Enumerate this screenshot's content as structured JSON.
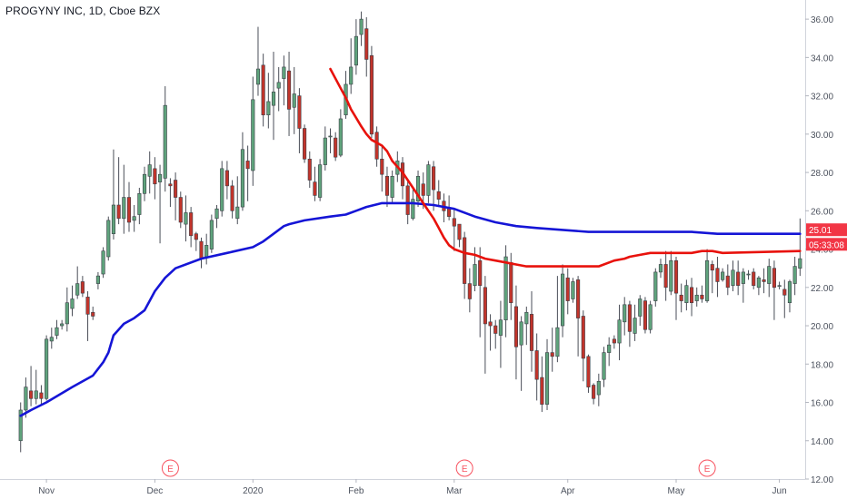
{
  "symbol_title": "PROGYNY INC, 1D, Cboe BZX",
  "chart_data": {
    "type": "candlestick",
    "title": "PROGYNY INC, 1D, Cboe BZX",
    "ylim": [
      12,
      37
    ],
    "y_ticks": [
      12,
      14,
      16,
      18,
      20,
      22,
      24,
      26,
      28,
      30,
      32,
      34,
      36
    ],
    "x_range": [
      -4,
      152
    ],
    "x_ticks": [
      {
        "label": "Nov",
        "x": 5
      },
      {
        "label": "Dec",
        "x": 26
      },
      {
        "label": "2020",
        "x": 45
      },
      {
        "label": "Feb",
        "x": 65
      },
      {
        "label": "Mar",
        "x": 84
      },
      {
        "label": "Apr",
        "x": 106
      },
      {
        "label": "May",
        "x": 127
      },
      {
        "label": "Jun",
        "x": 147
      }
    ],
    "earnings_markers": [
      {
        "label": "E",
        "x": 29
      },
      {
        "label": "E",
        "x": 86
      },
      {
        "label": "E",
        "x": 133
      }
    ],
    "price_labels": [
      {
        "text": "25.01",
        "value": 25.01,
        "color": "#f23645"
      },
      {
        "text": "05:33:08",
        "value": 24.25,
        "color": "#f23645"
      }
    ],
    "candles": [
      [
        0,
        14.0,
        15.6,
        13.4,
        16.0
      ],
      [
        1,
        15.6,
        16.8,
        15.2,
        17.3
      ],
      [
        2,
        16.6,
        16.2,
        15.8,
        17.9
      ],
      [
        3,
        16.2,
        16.6,
        15.9,
        17.7
      ],
      [
        4,
        16.5,
        16.2,
        15.9,
        16.9
      ],
      [
        5,
        16.2,
        19.3,
        16.1,
        19.5
      ],
      [
        6,
        19.2,
        19.4,
        18.8,
        19.9
      ],
      [
        7,
        19.5,
        19.9,
        19.3,
        20.3
      ],
      [
        8,
        20.0,
        20.1,
        19.8,
        20.3
      ],
      [
        9,
        20.1,
        21.2,
        19.7,
        22.0
      ],
      [
        10,
        20.9,
        21.4,
        20.5,
        22.1
      ],
      [
        11,
        21.6,
        22.2,
        21.4,
        23.1
      ],
      [
        12,
        22.3,
        21.7,
        21.5,
        22.6
      ],
      [
        13,
        21.5,
        20.6,
        19.2,
        21.8
      ],
      [
        14,
        20.7,
        20.5,
        20.3,
        21.0
      ],
      [
        15,
        22.2,
        22.6,
        21.9,
        22.8
      ],
      [
        16,
        22.7,
        23.9,
        22.5,
        24.1
      ],
      [
        17,
        23.6,
        25.5,
        23.4,
        25.7
      ],
      [
        18,
        24.8,
        26.3,
        24.5,
        29.2
      ],
      [
        19,
        26.3,
        25.6,
        25.3,
        28.8
      ],
      [
        20,
        25.6,
        26.7,
        24.8,
        28.4
      ],
      [
        21,
        26.7,
        25.4,
        24.9,
        27.5
      ],
      [
        22,
        25.5,
        25.7,
        24.9,
        26.3
      ],
      [
        23,
        25.8,
        26.9,
        25.3,
        27.2
      ],
      [
        24,
        26.9,
        27.9,
        26.5,
        28.3
      ],
      [
        25,
        27.8,
        28.4,
        26.9,
        29.1
      ],
      [
        26,
        28.2,
        27.4,
        26.6,
        28.8
      ],
      [
        27,
        27.5,
        27.9,
        24.3,
        28.4
      ],
      [
        28,
        27.7,
        31.5,
        27.0,
        32.5
      ],
      [
        29,
        27.4,
        27.3,
        26.2,
        27.7
      ],
      [
        30,
        27.6,
        26.7,
        25.5,
        28.0
      ],
      [
        31,
        26.7,
        25.4,
        25.1,
        27.0
      ],
      [
        32,
        25.3,
        25.9,
        24.4,
        26.8
      ],
      [
        33,
        25.9,
        24.7,
        24.1,
        26.2
      ],
      [
        34,
        24.8,
        24.5,
        23.9,
        24.9
      ],
      [
        35,
        24.4,
        23.5,
        23.0,
        24.6
      ],
      [
        36,
        23.6,
        24.2,
        23.2,
        24.8
      ],
      [
        37,
        24.0,
        25.5,
        23.8,
        25.8
      ],
      [
        38,
        25.6,
        26.1,
        25.1,
        26.3
      ],
      [
        39,
        26.0,
        28.2,
        25.7,
        28.6
      ],
      [
        40,
        28.1,
        27.3,
        26.6,
        28.6
      ],
      [
        41,
        27.3,
        26.0,
        25.6,
        27.6
      ],
      [
        42,
        25.6,
        26.2,
        25.3,
        27.8
      ],
      [
        43,
        26.2,
        29.2,
        26.0,
        30.1
      ],
      [
        44,
        28.6,
        28.2,
        26.5,
        29.4
      ],
      [
        45,
        28.1,
        31.8,
        27.3,
        33.0
      ],
      [
        46,
        32.6,
        33.4,
        32.0,
        35.6
      ],
      [
        47,
        33.6,
        31.0,
        30.4,
        34.2
      ],
      [
        48,
        31.0,
        31.7,
        30.3,
        33.2
      ],
      [
        49,
        31.5,
        32.2,
        29.7,
        34.3
      ],
      [
        50,
        32.4,
        32.7,
        31.2,
        33.5
      ],
      [
        51,
        32.9,
        33.5,
        31.5,
        34.1
      ],
      [
        52,
        33.3,
        31.3,
        29.9,
        34.3
      ],
      [
        53,
        31.4,
        32.1,
        30.0,
        33.5
      ],
      [
        54,
        32.0,
        30.3,
        29.0,
        32.4
      ],
      [
        55,
        30.3,
        28.7,
        28.5,
        30.5
      ],
      [
        56,
        28.7,
        27.6,
        27.2,
        29.1
      ],
      [
        57,
        27.5,
        26.8,
        26.5,
        28.3
      ],
      [
        58,
        26.7,
        28.4,
        26.5,
        28.7
      ],
      [
        59,
        28.4,
        29.8,
        28.1,
        30.4
      ],
      [
        60,
        29.9,
        29.9,
        29.0,
        30.3
      ],
      [
        61,
        29.8,
        28.8,
        28.6,
        30.1
      ],
      [
        62,
        28.9,
        30.8,
        28.8,
        31.3
      ],
      [
        63,
        31.0,
        32.6,
        30.8,
        33.3
      ],
      [
        64,
        32.6,
        33.5,
        32.1,
        35.0
      ],
      [
        65,
        33.6,
        35.1,
        33.1,
        36.0
      ],
      [
        66,
        35.2,
        36.0,
        34.6,
        36.4
      ],
      [
        67,
        35.5,
        33.9,
        33.0,
        36.1
      ],
      [
        68,
        34.1,
        30.0,
        29.8,
        34.6
      ],
      [
        69,
        30.1,
        28.7,
        28.3,
        30.4
      ],
      [
        70,
        28.7,
        27.9,
        27.0,
        29.4
      ],
      [
        71,
        27.8,
        26.8,
        26.2,
        28.3
      ],
      [
        72,
        26.7,
        27.8,
        26.4,
        28.1
      ],
      [
        73,
        27.9,
        28.6,
        27.5,
        29.1
      ],
      [
        74,
        28.5,
        27.3,
        26.6,
        28.8
      ],
      [
        75,
        27.3,
        25.8,
        25.3,
        27.6
      ],
      [
        76,
        25.6,
        26.6,
        25.5,
        27.1
      ],
      [
        77,
        26.5,
        27.8,
        26.2,
        28.1
      ],
      [
        78,
        27.4,
        26.8,
        26.1,
        28.0
      ],
      [
        79,
        26.8,
        28.4,
        26.4,
        28.6
      ],
      [
        80,
        28.3,
        27.1,
        26.0,
        28.6
      ],
      [
        81,
        27.0,
        26.6,
        26.2,
        27.6
      ],
      [
        82,
        26.5,
        26.0,
        25.4,
        26.9
      ],
      [
        83,
        26.1,
        25.7,
        25.5,
        26.8
      ],
      [
        84,
        25.6,
        25.2,
        23.9,
        26.1
      ],
      [
        85,
        25.3,
        24.5,
        24.1,
        25.3
      ],
      [
        86,
        24.6,
        22.2,
        21.4,
        24.9
      ],
      [
        87,
        22.2,
        21.4,
        20.7,
        23.0
      ],
      [
        88,
        22.1,
        23.2,
        21.8,
        24.1
      ],
      [
        89,
        23.4,
        22.1,
        19.4,
        24.1
      ],
      [
        90,
        22.0,
        20.1,
        17.5,
        22.6
      ],
      [
        91,
        20.2,
        20.0,
        18.7,
        20.6
      ],
      [
        92,
        20.0,
        19.6,
        18.8,
        20.3
      ],
      [
        93,
        19.5,
        20.3,
        17.8,
        21.3
      ],
      [
        94,
        20.3,
        23.6,
        19.4,
        24.2
      ],
      [
        95,
        23.3,
        21.2,
        20.3,
        23.8
      ],
      [
        96,
        21.0,
        18.9,
        17.2,
        22.1
      ],
      [
        97,
        19.0,
        20.2,
        16.6,
        20.5
      ],
      [
        98,
        20.1,
        20.7,
        19.0,
        21.0
      ],
      [
        99,
        20.6,
        18.7,
        17.6,
        21.8
      ],
      [
        100,
        18.7,
        17.2,
        16.1,
        19.6
      ],
      [
        101,
        17.3,
        15.9,
        15.5,
        18.4
      ],
      [
        102,
        15.9,
        18.6,
        15.6,
        19.3
      ],
      [
        103,
        18.6,
        18.4,
        17.6,
        19.9
      ],
      [
        104,
        18.4,
        19.9,
        18.1,
        22.6
      ],
      [
        105,
        20.0,
        22.7,
        19.4,
        23.2
      ],
      [
        106,
        22.5,
        21.3,
        20.6,
        23.0
      ],
      [
        107,
        21.4,
        22.3,
        21.2,
        22.5
      ],
      [
        108,
        22.4,
        20.4,
        18.4,
        22.6
      ],
      [
        109,
        20.5,
        18.3,
        17.1,
        20.8
      ],
      [
        110,
        18.4,
        16.8,
        16.5,
        18.5
      ],
      [
        111,
        16.9,
        16.2,
        15.9,
        17.0
      ],
      [
        112,
        16.4,
        17.1,
        15.8,
        17.5
      ],
      [
        113,
        17.2,
        18.6,
        16.8,
        18.9
      ],
      [
        114,
        18.6,
        19.0,
        17.9,
        19.4
      ],
      [
        115,
        19.3,
        19.1,
        18.8,
        19.5
      ],
      [
        116,
        19.1,
        20.3,
        18.2,
        21.1
      ],
      [
        117,
        20.2,
        21.1,
        19.5,
        21.5
      ],
      [
        118,
        21.1,
        19.7,
        18.9,
        21.3
      ],
      [
        119,
        19.6,
        20.4,
        19.2,
        21.1
      ],
      [
        120,
        20.5,
        21.4,
        20.0,
        21.6
      ],
      [
        121,
        21.3,
        19.8,
        19.6,
        21.5
      ],
      [
        122,
        19.8,
        21.1,
        19.6,
        21.3
      ],
      [
        123,
        21.3,
        22.8,
        21.0,
        23.0
      ],
      [
        124,
        22.8,
        23.2,
        22.5,
        23.5
      ],
      [
        125,
        23.2,
        22.0,
        21.3,
        23.9
      ],
      [
        126,
        21.8,
        23.4,
        21.6,
        23.9
      ],
      [
        127,
        23.4,
        21.7,
        20.3,
        23.6
      ],
      [
        128,
        21.6,
        21.3,
        20.7,
        22.2
      ],
      [
        129,
        21.2,
        22.1,
        20.8,
        22.4
      ],
      [
        130,
        22.0,
        21.2,
        20.5,
        22.5
      ],
      [
        131,
        21.3,
        21.6,
        21.0,
        22.0
      ],
      [
        132,
        21.6,
        21.4,
        21.2,
        22.1
      ],
      [
        133,
        21.3,
        23.4,
        21.2,
        24.0
      ],
      [
        134,
        23.2,
        22.9,
        21.7,
        23.4
      ],
      [
        135,
        23.0,
        22.3,
        21.5,
        23.6
      ],
      [
        136,
        22.4,
        22.8,
        22.3,
        23.0
      ],
      [
        137,
        22.6,
        22.0,
        21.6,
        23.2
      ],
      [
        138,
        22.1,
        22.9,
        21.8,
        23.4
      ],
      [
        139,
        22.8,
        22.1,
        21.6,
        23.4
      ],
      [
        140,
        22.2,
        22.8,
        21.2,
        23.0
      ],
      [
        141,
        22.7,
        22.7,
        22.4,
        22.9
      ],
      [
        142,
        22.8,
        22.1,
        21.9,
        23.0
      ],
      [
        143,
        22.0,
        22.5,
        21.6,
        22.6
      ],
      [
        144,
        22.4,
        22.3,
        21.7,
        23.0
      ],
      [
        145,
        22.2,
        23.1,
        21.5,
        23.5
      ],
      [
        146,
        23.0,
        22.0,
        20.3,
        23.4
      ],
      [
        147,
        22.1,
        22.1,
        21.9,
        22.3
      ],
      [
        148,
        21.9,
        21.6,
        20.4,
        22.4
      ],
      [
        149,
        21.2,
        22.3,
        20.7,
        22.4
      ],
      [
        150,
        22.2,
        23.1,
        21.6,
        23.6
      ],
      [
        151,
        23.0,
        23.5,
        22.6,
        25.6
      ]
    ],
    "series": [
      {
        "name": "",
        "color": "#1515d6",
        "points": [
          [
            0,
            15.3
          ],
          [
            2,
            15.6
          ],
          [
            5,
            16.0
          ],
          [
            10,
            16.8
          ],
          [
            14,
            17.4
          ],
          [
            16,
            18.1
          ],
          [
            17,
            18.6
          ],
          [
            18,
            19.5
          ],
          [
            20,
            20.1
          ],
          [
            22,
            20.4
          ],
          [
            24,
            20.8
          ],
          [
            25,
            21.3
          ],
          [
            26,
            21.8
          ],
          [
            28,
            22.5
          ],
          [
            30,
            23.0
          ],
          [
            35,
            23.5
          ],
          [
            40,
            23.8
          ],
          [
            45,
            24.1
          ],
          [
            47,
            24.4
          ],
          [
            49,
            24.8
          ],
          [
            51,
            25.2
          ],
          [
            52,
            25.3
          ],
          [
            55,
            25.5
          ],
          [
            60,
            25.7
          ],
          [
            63,
            25.8
          ],
          [
            65,
            26.0
          ],
          [
            67,
            26.2
          ],
          [
            70,
            26.4
          ],
          [
            74,
            26.4
          ],
          [
            76,
            26.4
          ],
          [
            80,
            26.3
          ],
          [
            84,
            26.1
          ],
          [
            88,
            25.7
          ],
          [
            92,
            25.4
          ],
          [
            96,
            25.2
          ],
          [
            100,
            25.1
          ],
          [
            105,
            25.0
          ],
          [
            110,
            24.9
          ],
          [
            115,
            24.9
          ],
          [
            120,
            24.9
          ],
          [
            125,
            24.9
          ],
          [
            130,
            24.9
          ],
          [
            135,
            24.8
          ],
          [
            140,
            24.8
          ],
          [
            145,
            24.8
          ],
          [
            151,
            24.8
          ]
        ]
      },
      {
        "name": "",
        "color": "#e8120c",
        "points": [
          [
            60,
            33.4
          ],
          [
            62,
            32.4
          ],
          [
            63,
            31.9
          ],
          [
            64,
            31.3
          ],
          [
            66,
            30.4
          ],
          [
            67,
            30.0
          ],
          [
            68,
            29.7
          ],
          [
            70,
            29.4
          ],
          [
            71,
            29.1
          ],
          [
            72,
            28.6
          ],
          [
            74,
            28.0
          ],
          [
            76,
            27.2
          ],
          [
            78,
            26.4
          ],
          [
            80,
            25.6
          ],
          [
            81,
            25.1
          ],
          [
            82,
            24.6
          ],
          [
            83,
            24.2
          ],
          [
            84,
            24.0
          ],
          [
            86,
            23.8
          ],
          [
            88,
            23.7
          ],
          [
            90,
            23.5
          ],
          [
            92,
            23.4
          ],
          [
            94,
            23.3
          ],
          [
            96,
            23.2
          ],
          [
            98,
            23.1
          ],
          [
            100,
            23.1
          ],
          [
            104,
            23.1
          ],
          [
            108,
            23.1
          ],
          [
            112,
            23.1
          ],
          [
            115,
            23.4
          ],
          [
            117,
            23.5
          ],
          [
            118,
            23.6
          ],
          [
            120,
            23.7
          ],
          [
            122,
            23.8
          ],
          [
            126,
            23.8
          ],
          [
            130,
            23.8
          ],
          [
            132,
            23.9
          ],
          [
            134,
            23.9
          ],
          [
            136,
            23.8
          ],
          [
            151,
            23.9
          ]
        ]
      }
    ],
    "colors": {
      "up": "#5fa37c",
      "down": "#c2342b",
      "axis_text": "#4c525e",
      "grid": "#e0e3eb"
    }
  }
}
